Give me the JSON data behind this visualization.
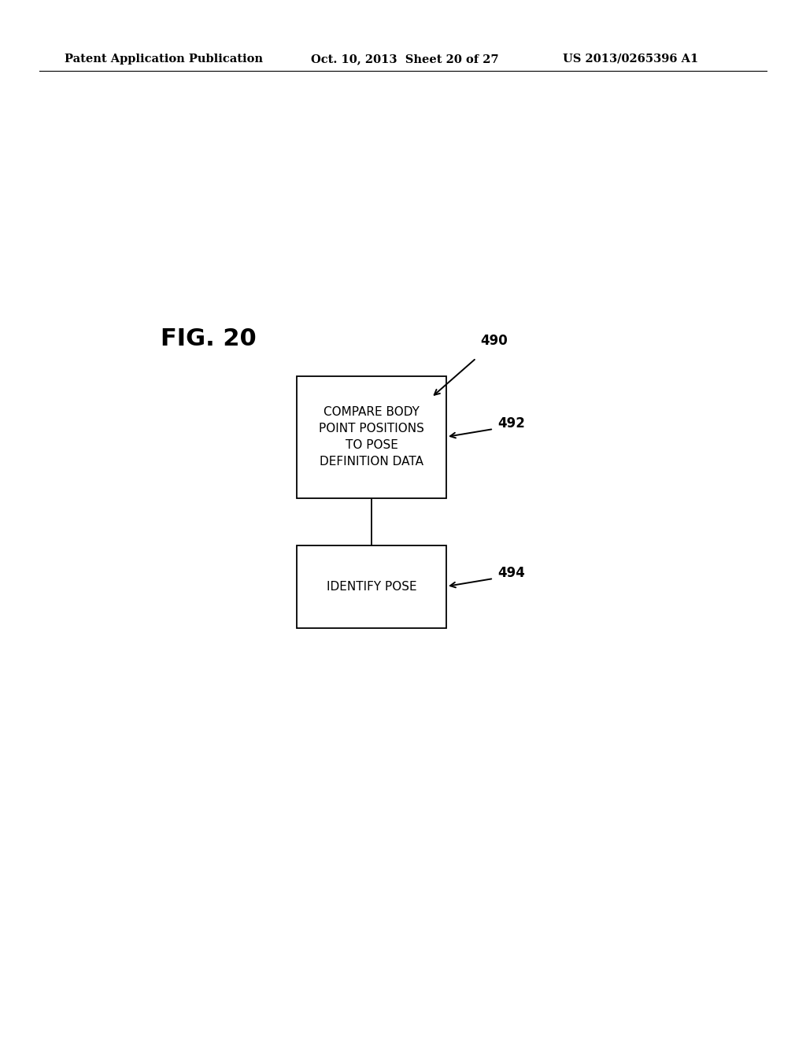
{
  "background_color": "#ffffff",
  "header_left": "Patent Application Publication",
  "header_center": "Oct. 10, 2013  Sheet 20 of 27",
  "header_right": "US 2013/0265396 A1",
  "fig_label": "FIG. 20",
  "box1_label": "COMPARE BODY\nPOINT POSITIONS\nTO POSE\nDEFINITION DATA",
  "box1_ref": "492",
  "box2_label": "IDENTIFY POSE",
  "box2_ref": "494",
  "arrow490_label": "490",
  "text_color": "#000000",
  "box_edge_color": "#000000"
}
